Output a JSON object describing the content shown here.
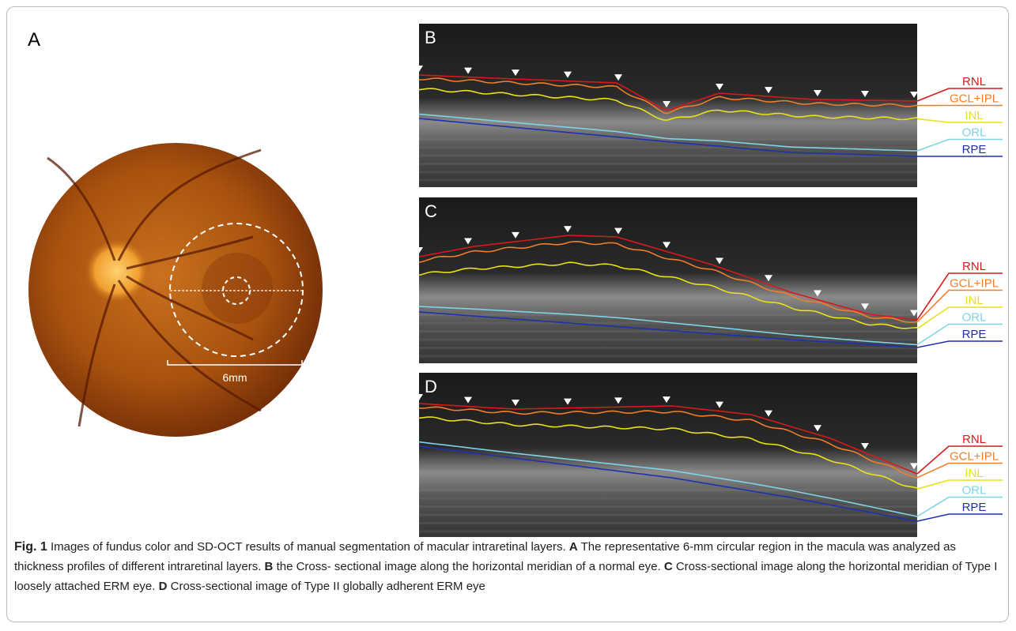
{
  "figure": {
    "panel_labels": {
      "a": "A",
      "b": "B",
      "c": "C",
      "d": "D"
    },
    "scale_label": "6mm",
    "layers": [
      {
        "name": "RNL",
        "color": "#d7191c"
      },
      {
        "name": "GCL+IPL",
        "color": "#f07d2a"
      },
      {
        "name": "INL",
        "color": "#e6e21a"
      },
      {
        "name": "ORL",
        "color": "#7fd3e6"
      },
      {
        "name": "RPE",
        "color": "#2030b0"
      }
    ],
    "caption": {
      "fig_label": "Fig. 1",
      "intro": "Images of fundus color and SD-OCT results of manual segmentation of macular intraretinal layers.",
      "parts": [
        {
          "label": "A",
          "text": "The representative 6-mm circular region in the macula was analyzed as thickness profiles of different intraretinal layers."
        },
        {
          "label": "B",
          "text": "the Cross- sectional image along the horizontal meridian of a normal eye."
        },
        {
          "label": "C",
          "text": "Cross-sectional image along the horizontal meridian of Type I loosely attached ERM eye."
        },
        {
          "label": "D",
          "text": "Cross-sectional image of Type II globally adherent ERM eye"
        }
      ]
    }
  }
}
